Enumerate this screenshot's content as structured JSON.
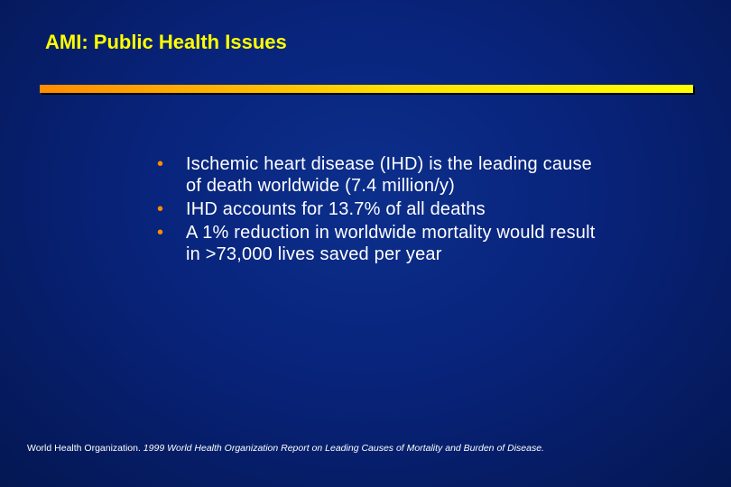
{
  "slide": {
    "title": "AMI: Public Health Issues",
    "bullets": [
      "Ischemic heart disease (IHD) is the leading cause of death worldwide (7.4 million/y)",
      "IHD accounts for 13.7% of all deaths",
      "A 1% reduction in worldwide mortality would result in >73,000 lives saved per year"
    ],
    "citation": {
      "author": "World Health Organization.",
      "title": "1999 World Health Organization Report on Leading Causes of Mortality and Burden of Disease."
    },
    "colors": {
      "title": "#ffff00",
      "bullet_marker": "#ff8c00",
      "text": "#ffffff",
      "background": "#08237a"
    }
  }
}
